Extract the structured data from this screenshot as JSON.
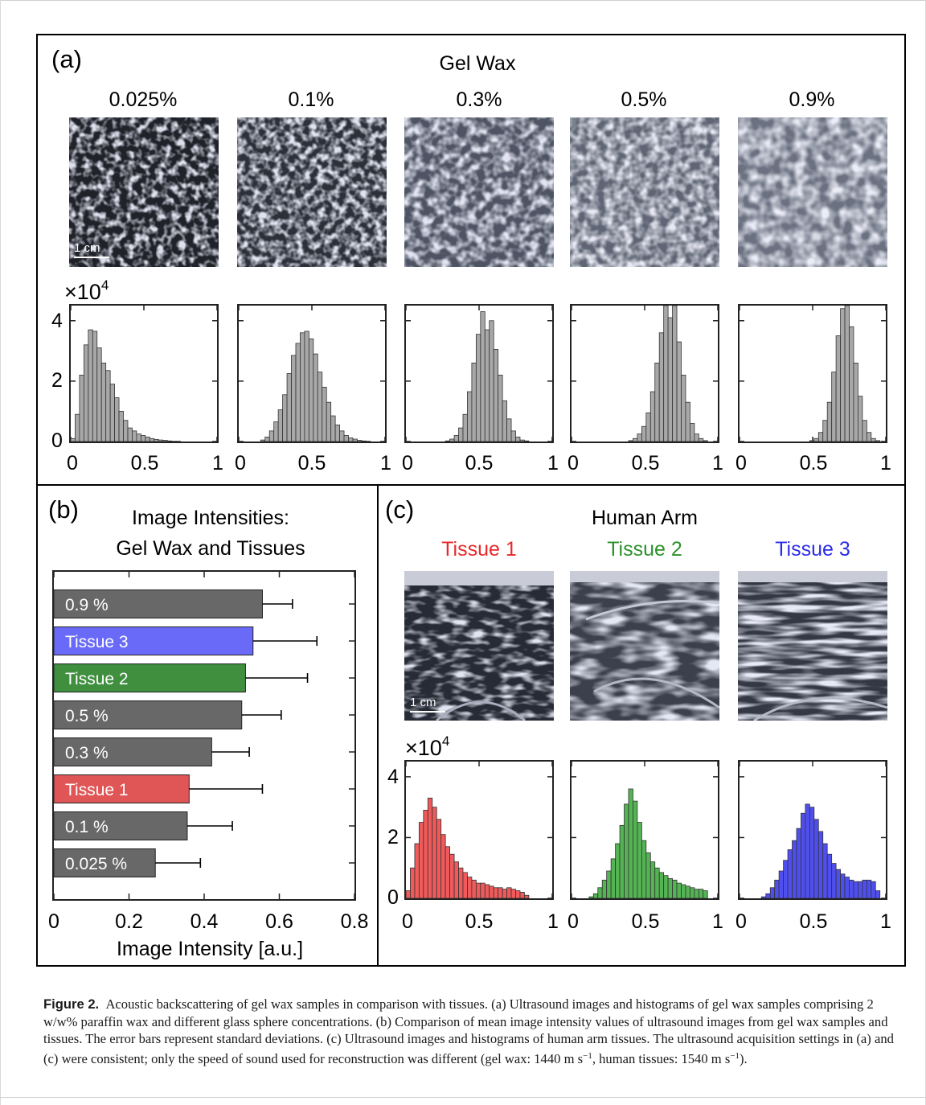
{
  "panel_a": {
    "label": "(a)",
    "title": "Gel Wax",
    "concentrations": [
      "0.025%",
      "0.1%",
      "0.3%",
      "0.5%",
      "0.9%"
    ],
    "scale_bar": "1 cm",
    "y_exponent_base": "×10",
    "y_exponent_power": "4",
    "y_ticks": [
      "4",
      "2",
      "0"
    ],
    "x_ticks": [
      "0",
      "0.5",
      "1"
    ]
  },
  "panel_b": {
    "label": "(b)",
    "title_line1": "Image Intensities:",
    "title_line2": "Gel Wax and Tissues",
    "x_ticks": [
      "0",
      "0.2",
      "0.4",
      "0.6",
      "0.8"
    ],
    "xlabel": "Image Intensity [a.u.]"
  },
  "panel_c": {
    "label": "(c)",
    "title": "Human Arm",
    "tissues": [
      "Tissue 1",
      "Tissue 2",
      "Tissue 3"
    ],
    "tissue_colors": [
      "#e8282a",
      "#2c922c",
      "#2d2de8"
    ],
    "scale_bar": "1 cm",
    "y_exponent_base": "×10",
    "y_exponent_power": "4",
    "y_ticks": [
      "4",
      "2",
      "0"
    ],
    "x_ticks": [
      "0",
      "0.5",
      "1"
    ]
  },
  "caption": {
    "figure_label": "Figure 2.",
    "text1": "Acoustic backscattering of gel wax samples in comparison with tissues. (a) Ultrasound images and histograms of gel wax samples comprising 2 w/w% paraffin wax and different glass sphere concentrations. (b) Comparison of mean image intensity values of ultrasound images from gel wax samples and tissues. The error bars represent standard deviations. (c) Ultrasound images and histograms of human arm tissues. The ultrasound acquisition settings in (a) and (c) were consistent; only the speed of sound used for reconstruction was different (gel wax: 1440 m s",
    "sup1": "−1",
    "text2": ", human tissues: 1540 m s",
    "sup2": "−1",
    "text3": ")."
  },
  "chart_data": [
    {
      "type": "bar",
      "orientation": "horizontal",
      "title": "Image Intensities: Gel Wax and Tissues",
      "xlabel": "Image Intensity [a.u.]",
      "xlim": [
        0,
        0.8
      ],
      "categories": [
        "0.9 %",
        "Tissue 3",
        "Tissue 2",
        "0.5 %",
        "0.3 %",
        "Tissue 1",
        "0.1 %",
        "0.025 %"
      ],
      "values": [
        0.555,
        0.53,
        0.51,
        0.5,
        0.42,
        0.36,
        0.355,
        0.27
      ],
      "errors": [
        0.08,
        0.17,
        0.165,
        0.105,
        0.1,
        0.195,
        0.12,
        0.12
      ],
      "colors": [
        "#686868",
        "#6a6af8",
        "#3f8f3f",
        "#686868",
        "#686868",
        "#e05656",
        "#686868",
        "#686868"
      ]
    },
    {
      "type": "bar",
      "title": "Gel Wax histograms",
      "xlim": [
        0,
        1
      ],
      "ylim": [
        0,
        4.5
      ],
      "y_multiplier": "10^4",
      "bin_width": 0.03,
      "series": [
        {
          "name": "0.025%",
          "color": "#a8a8a8",
          "values": [
            0.1,
            0.9,
            2.2,
            3.2,
            3.7,
            3.65,
            3.1,
            2.6,
            2.35,
            1.9,
            1.45,
            1.0,
            0.7,
            0.45,
            0.35,
            0.25,
            0.2,
            0.15,
            0.1,
            0.07,
            0.05,
            0.04,
            0.02,
            0.01,
            0.01,
            0,
            0,
            0,
            0,
            0,
            0,
            0,
            0
          ]
        },
        {
          "name": "0.1%",
          "color": "#a8a8a8",
          "values": [
            0,
            0,
            0,
            0,
            0,
            0.05,
            0.15,
            0.35,
            0.65,
            1.05,
            1.55,
            2.25,
            2.85,
            3.25,
            3.6,
            3.65,
            3.4,
            2.9,
            2.3,
            1.8,
            1.3,
            0.85,
            0.55,
            0.35,
            0.2,
            0.12,
            0.08,
            0.04,
            0.02,
            0.01,
            0,
            0,
            0
          ]
        },
        {
          "name": "0.3%",
          "color": "#a8a8a8",
          "values": [
            0,
            0,
            0,
            0,
            0,
            0,
            0,
            0,
            0,
            0.02,
            0.08,
            0.2,
            0.45,
            0.9,
            1.65,
            2.6,
            3.55,
            4.3,
            3.7,
            4.0,
            3.05,
            2.2,
            1.35,
            0.75,
            0.35,
            0.15,
            0.05,
            0.02,
            0,
            0,
            0,
            0,
            0
          ]
        },
        {
          "name": "0.5%",
          "color": "#a8a8a8",
          "values": [
            0,
            0,
            0,
            0,
            0,
            0,
            0,
            0,
            0,
            0,
            0,
            0,
            0,
            0.03,
            0.1,
            0.25,
            0.5,
            0.95,
            1.65,
            2.6,
            3.6,
            4.5,
            4.1,
            4.5,
            3.3,
            2.2,
            1.3,
            0.6,
            0.25,
            0.1,
            0.03,
            0,
            0
          ]
        },
        {
          "name": "0.9%",
          "color": "#a8a8a8",
          "values": [
            0,
            0,
            0,
            0,
            0,
            0,
            0,
            0,
            0,
            0,
            0,
            0,
            0,
            0,
            0,
            0,
            0.03,
            0.1,
            0.3,
            0.7,
            1.3,
            2.3,
            3.5,
            4.4,
            4.6,
            3.8,
            2.6,
            1.5,
            0.7,
            0.3,
            0.1,
            0.03,
            0
          ]
        }
      ]
    },
    {
      "type": "bar",
      "title": "Human Arm histograms",
      "xlim": [
        0,
        1
      ],
      "ylim": [
        0,
        4.5
      ],
      "y_multiplier": "10^4",
      "bin_width": 0.03,
      "series": [
        {
          "name": "Tissue 1",
          "color": "#f05a5a",
          "values": [
            0.25,
            1.0,
            1.8,
            2.5,
            2.9,
            3.3,
            3.0,
            2.6,
            2.1,
            1.7,
            1.45,
            1.2,
            1.0,
            0.85,
            0.7,
            0.6,
            0.5,
            0.5,
            0.45,
            0.4,
            0.35,
            0.35,
            0.3,
            0.35,
            0.3,
            0.25,
            0.2,
            0.1,
            0,
            0,
            0,
            0,
            0
          ]
        },
        {
          "name": "Tissue 2",
          "color": "#54b454",
          "values": [
            0,
            0,
            0,
            0,
            0.05,
            0.15,
            0.35,
            0.6,
            0.9,
            1.3,
            1.8,
            2.4,
            3.1,
            3.6,
            3.2,
            2.5,
            1.9,
            1.5,
            1.2,
            1.0,
            0.85,
            0.75,
            0.65,
            0.6,
            0.5,
            0.45,
            0.4,
            0.35,
            0.3,
            0.3,
            0.25,
            0,
            0
          ]
        },
        {
          "name": "Tissue 3",
          "color": "#4f4ff0",
          "values": [
            0,
            0,
            0,
            0,
            0,
            0.05,
            0.15,
            0.35,
            0.6,
            0.9,
            1.25,
            1.6,
            1.9,
            2.3,
            2.8,
            3.1,
            3.0,
            2.6,
            2.2,
            1.8,
            1.45,
            1.15,
            0.95,
            0.8,
            0.7,
            0.6,
            0.55,
            0.55,
            0.6,
            0.6,
            0.55,
            0.25,
            0
          ]
        }
      ]
    }
  ]
}
